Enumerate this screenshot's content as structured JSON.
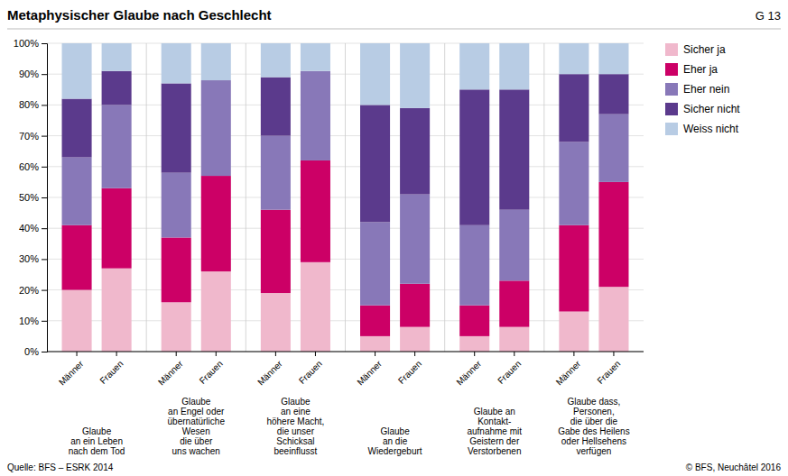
{
  "chart_data": {
    "type": "bar",
    "stacked": true,
    "title": "Metaphysischer Glaube nach Geschlecht",
    "annotations": [
      "G 13",
      "Quelle: BFS – ESRK 2014",
      "© BFS, Neuchâtel 2016"
    ],
    "categories": [
      "Männer",
      "Frauen",
      "Männer",
      "Frauen",
      "Männer",
      "Frauen",
      "Männer",
      "Frauen",
      "Männer",
      "Frauen",
      "Männer",
      "Frauen"
    ],
    "groups": [
      "Glaube\nan ein Leben\nnach dem Tod",
      "Glaube\nan Engel oder\nübernatürliche\nWesen\ndie über\nuns wachen",
      "Glaube\nan eine\nhöhere Macht,\ndie unser\nSchicksal\nbeeinflusst",
      "Glaube\nan die\nWiedergeburt",
      "Glaube an\nKontakt-\naufnahme mit\nGeistern der\nVerstorbenen",
      "Glaube dass,\nPersonen,\ndie über die\nGabe des Heilens\noder Hellsehens\nverfügen"
    ],
    "series": [
      {
        "name": "Sicher ja",
        "color": "#f0b8cc",
        "values": [
          20,
          27,
          16,
          26,
          19,
          29,
          5,
          8,
          5,
          8,
          13,
          21
        ]
      },
      {
        "name": "Eher ja",
        "color": "#cc0066",
        "values": [
          21,
          26,
          21,
          31,
          27,
          33,
          10,
          14,
          10,
          15,
          28,
          34
        ]
      },
      {
        "name": "Eher nein",
        "color": "#8878b8",
        "values": [
          22,
          27,
          21,
          31,
          24,
          29,
          27,
          29,
          26,
          23,
          27,
          22
        ]
      },
      {
        "name": "Sicher nicht",
        "color": "#5b3a8c",
        "values": [
          19,
          11,
          29,
          0,
          19,
          0,
          38,
          28,
          44,
          39,
          22,
          13
        ]
      },
      {
        "name": "Weiss nicht",
        "color": "#b8cce4",
        "values": [
          18,
          9,
          13,
          12,
          11,
          9,
          20,
          21,
          15,
          15,
          10,
          10
        ]
      }
    ],
    "ylim": [
      0,
      100
    ],
    "yticks": [
      {
        "value": 0,
        "label": "0%"
      },
      {
        "value": 10,
        "label": "10%"
      },
      {
        "value": 20,
        "label": "20%"
      },
      {
        "value": 30,
        "label": "30%"
      },
      {
        "value": 40,
        "label": "40%"
      },
      {
        "value": 50,
        "label": "50%"
      },
      {
        "value": 60,
        "label": "60%"
      },
      {
        "value": 70,
        "label": "70%"
      },
      {
        "value": 80,
        "label": "80%"
      },
      {
        "value": 90,
        "label": "90%"
      },
      {
        "value": 100,
        "label": "100%"
      }
    ],
    "grid": true,
    "legend": "right"
  }
}
